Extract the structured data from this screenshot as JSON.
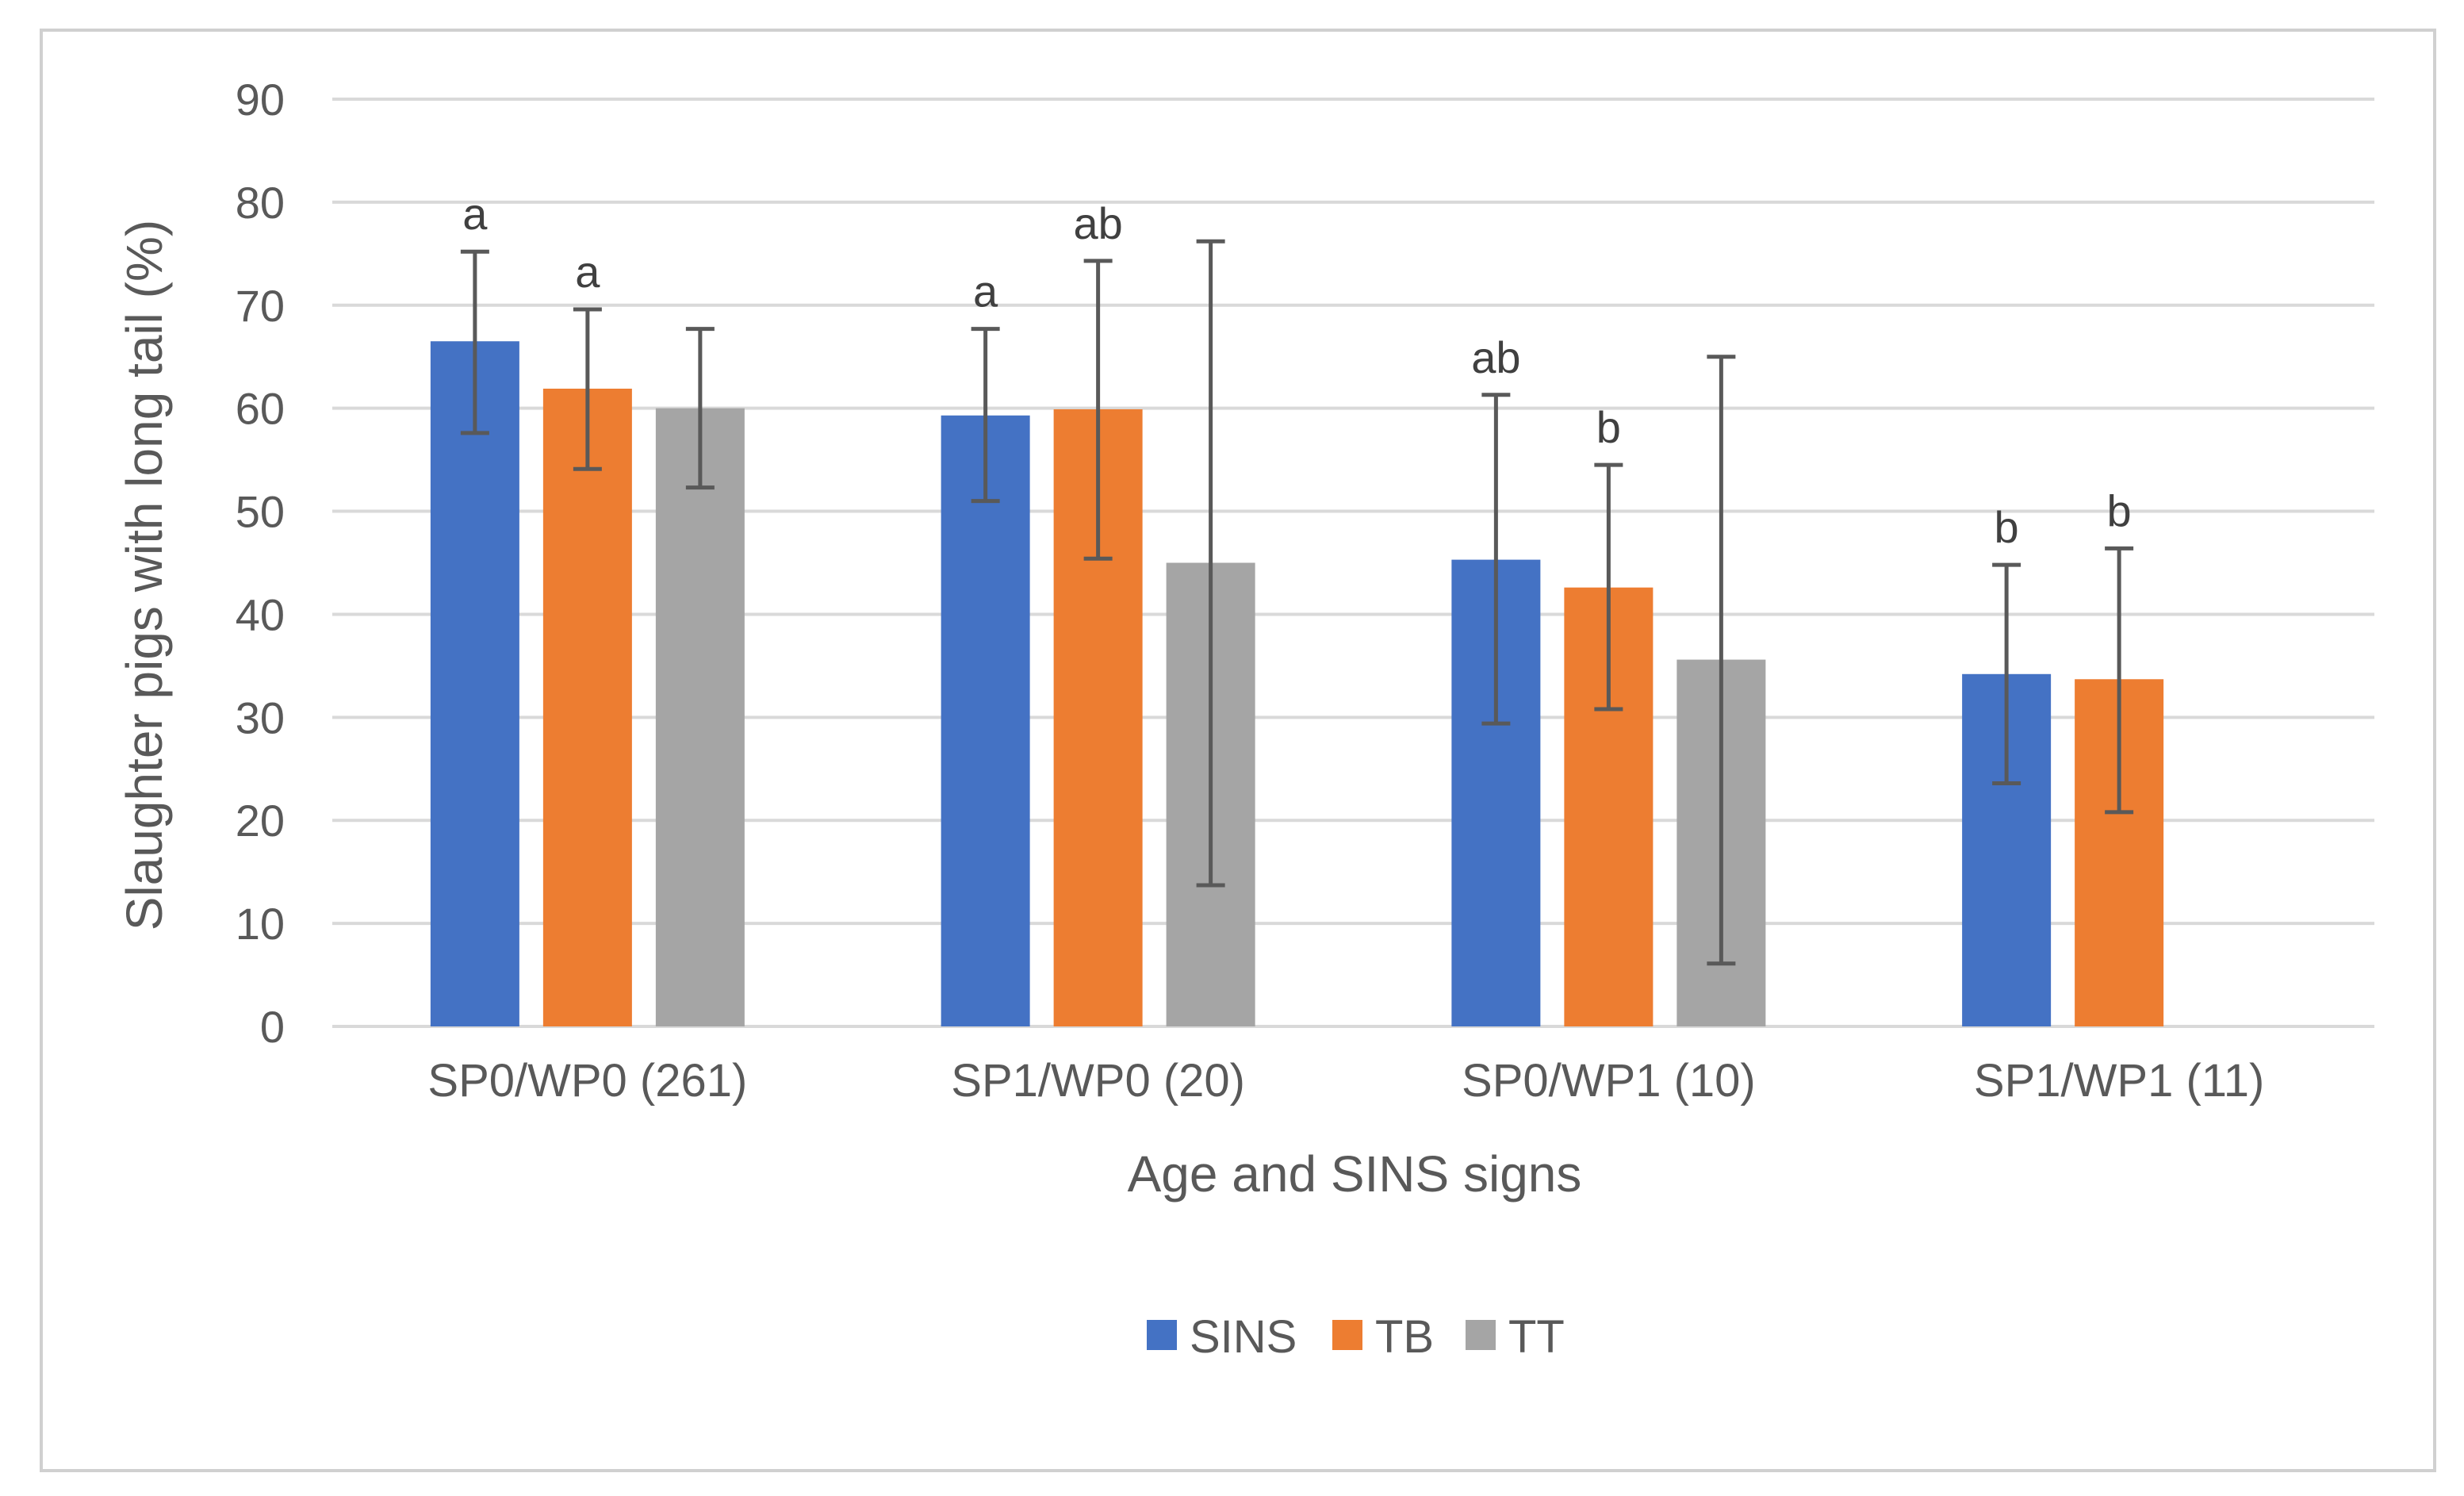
{
  "chart_data": {
    "type": "bar",
    "title": "",
    "xlabel": "Age and SINS signs",
    "ylabel": "Slaughter pigs with long tail (%)",
    "ylim": [
      0,
      90
    ],
    "yticks": [
      0,
      10,
      20,
      30,
      40,
      50,
      60,
      70,
      80,
      90
    ],
    "grid": true,
    "legend_position": "bottom-center",
    "categories": [
      "SP0/WP0 (261)",
      "SP1/WP0 (20)",
      "SP0/WP1 (10)",
      "SP1/WP1 (11)"
    ],
    "series": [
      {
        "name": "SINS",
        "color": "#4472C4",
        "values": [
          66.5,
          59.3,
          45.3,
          34.2
        ],
        "error_low": [
          57.6,
          51.0,
          29.4,
          23.6
        ],
        "error_high": [
          75.2,
          67.7,
          61.3,
          44.8
        ],
        "labels": [
          "a",
          "a",
          "ab",
          "b"
        ]
      },
      {
        "name": "TB",
        "color": "#ED7D31",
        "values": [
          61.9,
          59.9,
          42.6,
          33.7
        ],
        "error_low": [
          54.1,
          45.4,
          30.8,
          20.8
        ],
        "error_high": [
          69.6,
          74.3,
          54.5,
          46.4
        ],
        "labels": [
          "a",
          "ab",
          "b",
          "b"
        ]
      },
      {
        "name": "TT",
        "color": "#A5A5A5",
        "values": [
          60.0,
          45.0,
          35.6,
          null
        ],
        "error_low": [
          52.3,
          13.7,
          6.1,
          null
        ],
        "error_high": [
          67.7,
          76.2,
          65.0,
          null
        ],
        "labels": [
          "",
          "",
          "",
          ""
        ]
      }
    ]
  },
  "style": {
    "grid_color": "#D9D9D9",
    "error_bar_color": "#595959"
  }
}
